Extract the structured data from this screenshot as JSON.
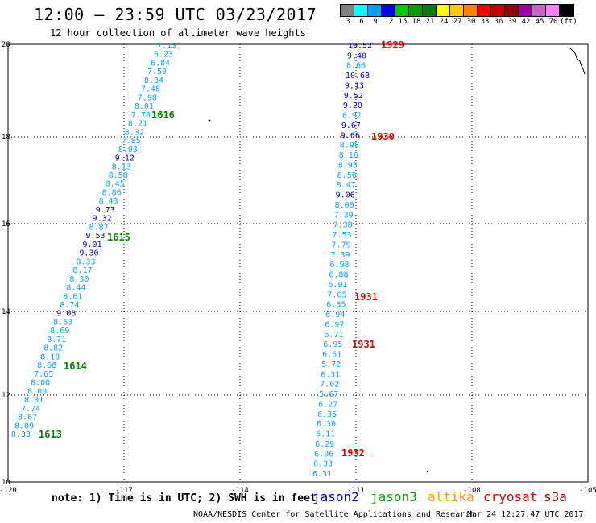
{
  "header": {
    "title": "12:00 — 23:59 UTC 03/23/2017",
    "subtitle": "12 hour collection of altimeter wave heights"
  },
  "colorbar": {
    "colors": [
      "#808080",
      "#00ffff",
      "#00a0ff",
      "#0000ff",
      "#00c800",
      "#00a000",
      "#008000",
      "#ffff00",
      "#ffc800",
      "#ff8000",
      "#ff0000",
      "#c80000",
      "#960000",
      "#a000a0",
      "#c864c8",
      "#ff80ff",
      "#000000"
    ],
    "labels": [
      "3",
      "6",
      "9",
      "12",
      "15",
      "18",
      "21",
      "24",
      "27",
      "30",
      "33",
      "36",
      "39",
      "42",
      "45",
      "70",
      "(ft)"
    ]
  },
  "axes": {
    "x_ticks": [
      "-120",
      "-117",
      "-114",
      "-111",
      "-108",
      "-105"
    ],
    "y_ticks": [
      "10",
      "12",
      "14",
      "16",
      "18",
      "20"
    ]
  },
  "track_left": {
    "values": [
      "7.13",
      "6.23",
      "6.84",
      "7.50",
      "8.34",
      "7.48",
      "7.98",
      "8.01",
      "7.78",
      "8.21",
      "8.32",
      "7.85",
      "8.03",
      "9.12",
      "8.13",
      "8.50",
      "8.45",
      "8.86",
      "8.43",
      "9.73",
      "9.32",
      "8.87",
      "9.53",
      "9.01",
      "9.30",
      "8.33",
      "8.17",
      "8.30",
      "8.44",
      "8.61",
      "8.74",
      "9.03",
      "8.53",
      "8.69",
      "8.71",
      "8.82",
      "8.18",
      "8.68",
      "7.65",
      "8.00",
      "8.00",
      "8.01",
      "7.74",
      "8.67",
      "8.09",
      "8.33"
    ],
    "colors": [
      "#00a0ff",
      "#00a0ff",
      "#00a0ff",
      "#00a0ff",
      "#00a0ff",
      "#00a0ff",
      "#00a0ff",
      "#00a0ff",
      "#00a0ff",
      "#00a0ff",
      "#00a0ff",
      "#00a0ff",
      "#00a0ff",
      "#0000c8",
      "#00a0ff",
      "#00a0ff",
      "#00a0ff",
      "#00a0ff",
      "#00a0ff",
      "#0000c8",
      "#0000c8",
      "#00a0ff",
      "#0000c8",
      "#0000c8",
      "#0000c8",
      "#00a0ff",
      "#00a0ff",
      "#00a0ff",
      "#00a0ff",
      "#00a0ff",
      "#00a0ff",
      "#0000c8",
      "#00a0ff",
      "#00a0ff",
      "#00a0ff",
      "#00a0ff",
      "#00a0ff",
      "#00a0ff",
      "#00a0ff",
      "#00a0ff",
      "#00a0ff",
      "#00a0ff",
      "#00a0ff",
      "#00a0ff",
      "#00a0ff",
      "#00a0ff"
    ],
    "times": [
      {
        "label": "1616",
        "color": "#008000"
      },
      {
        "label": "1615",
        "color": "#008000"
      },
      {
        "label": "1614",
        "color": "#008000"
      },
      {
        "label": "1613",
        "color": "#008000"
      }
    ]
  },
  "track_right": {
    "values": [
      "10.52",
      "9.40",
      "8.66",
      "10.68",
      "9.13",
      "9.52",
      "9.20",
      "8.97",
      "9.67",
      "9.66",
      "8.98",
      "8.16",
      "8.95",
      "8.56",
      "8.47",
      "9.06",
      "8.00",
      "7.39",
      "7.38",
      "7.53",
      "7.79",
      "7.39",
      "6.98",
      "6.88",
      "6.91",
      "7.65",
      "6.35",
      "6.94",
      "6.97",
      "6.71",
      "6.95",
      "6.61",
      "5.72",
      "6.31",
      "7.02",
      "5.67",
      "6.27",
      "6.35",
      "6.30",
      "6.11",
      "6.29",
      "6.06",
      "6.33",
      "6.31"
    ],
    "colors": [
      "#0000c8",
      "#0000c8",
      "#00a0ff",
      "#0000c8",
      "#0000c8",
      "#0000c8",
      "#0000c8",
      "#00a0ff",
      "#0000c8",
      "#0000c8",
      "#00a0ff",
      "#00a0ff",
      "#00a0ff",
      "#00a0ff",
      "#00a0ff",
      "#0000c8",
      "#00a0ff",
      "#00a0ff",
      "#00a0ff",
      "#00a0ff",
      "#00a0ff",
      "#00a0ff",
      "#00a0ff",
      "#00a0ff",
      "#00a0ff",
      "#00a0ff",
      "#00a0ff",
      "#00a0ff",
      "#00a0ff",
      "#00a0ff",
      "#00a0ff",
      "#00a0ff",
      "#00a0ff",
      "#00a0ff",
      "#00a0ff",
      "#00a0ff",
      "#00a0ff",
      "#00a0ff",
      "#00a0ff",
      "#00a0ff",
      "#00a0ff",
      "#00a0ff",
      "#00a0ff",
      "#00a0ff"
    ],
    "times": [
      {
        "label": "1929",
        "color": "#dc0000"
      },
      {
        "label": "1930",
        "color": "#dc0000"
      },
      {
        "label": "1931",
        "color": "#dc0000"
      },
      {
        "label": "1931",
        "color": "#dc0000"
      },
      {
        "label": "1932",
        "color": "#dc0000"
      }
    ]
  },
  "footer": {
    "note": "note: 1) Time is in UTC; 2) SWH is in feet",
    "legend": [
      {
        "label": "jason2",
        "color": "#0000c8"
      },
      {
        "label": "jason3",
        "color": "#00a000"
      },
      {
        "label": "altika",
        "color": "#ff9600"
      },
      {
        "label": "cryosat",
        "color": "#dc0000"
      },
      {
        "label": "s3a",
        "color": "#960000"
      }
    ],
    "credit": "NOAA/NESDIS Center for Satellite Applications and Research",
    "timestamp": "Mar 24 12:27:47 UTC 2017"
  }
}
